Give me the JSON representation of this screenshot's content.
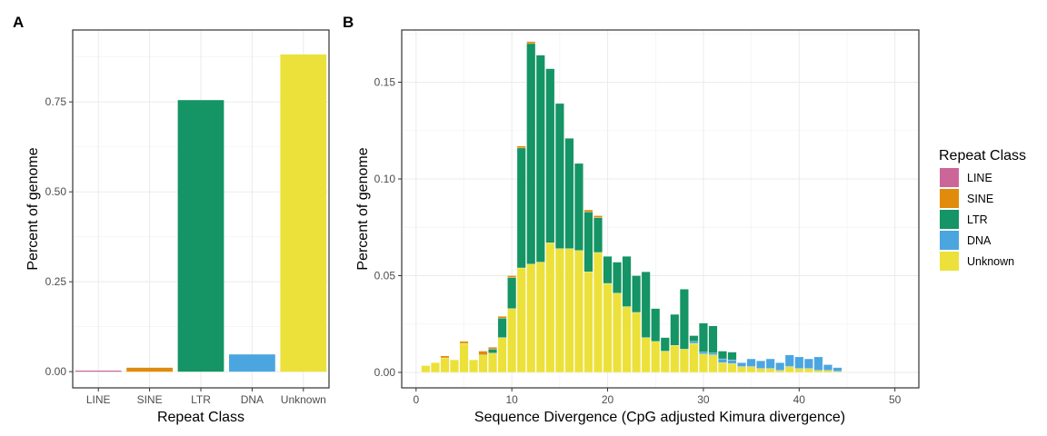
{
  "panels": {
    "a": "A",
    "b": "B"
  },
  "legend": {
    "title": "Repeat Class",
    "items": [
      {
        "label": "LINE",
        "color": "#cc6699"
      },
      {
        "label": "SINE",
        "color": "#e08b0b"
      },
      {
        "label": "LTR",
        "color": "#159465"
      },
      {
        "label": "DNA",
        "color": "#4ba6e0"
      },
      {
        "label": "Unknown",
        "color": "#ece13a"
      }
    ]
  },
  "chart_data": [
    {
      "type": "bar",
      "xlabel": "Repeat Class",
      "ylabel": "Percent of genome",
      "categories": [
        "LINE",
        "SINE",
        "LTR",
        "DNA",
        "Unknown"
      ],
      "values": [
        0.003,
        0.011,
        0.755,
        0.048,
        0.882
      ],
      "colors": [
        "#cc6699",
        "#e08b0b",
        "#159465",
        "#4ba6e0",
        "#ece13a"
      ],
      "ylim": [
        0,
        0.95
      ],
      "yticks": [
        0.0,
        0.25,
        0.5,
        0.75
      ],
      "ytick_labels": [
        "0.00",
        "0.25",
        "0.50",
        "0.75"
      ],
      "grid": true
    },
    {
      "type": "bar",
      "stacked": true,
      "xlabel": "Sequence Divergence (CpG adjusted Kimura divergence)",
      "ylabel": "Percent of genome",
      "x": [
        1,
        2,
        3,
        4,
        5,
        6,
        7,
        8,
        9,
        10,
        11,
        12,
        13,
        14,
        15,
        16,
        17,
        18,
        19,
        20,
        21,
        22,
        23,
        24,
        25,
        26,
        27,
        28,
        29,
        30,
        31,
        32,
        33,
        34,
        35,
        36,
        37,
        38,
        39,
        40,
        41,
        42,
        43,
        44
      ],
      "series": [
        {
          "name": "LINE",
          "color": "#cc6699",
          "values": [
            0,
            0,
            0,
            0,
            0,
            0,
            0,
            0,
            0,
            0,
            0,
            0,
            0,
            0,
            0,
            0,
            0,
            0,
            0,
            0,
            0,
            0,
            0,
            0,
            0,
            0,
            0,
            0,
            0,
            0,
            0,
            0,
            0,
            0,
            0,
            0,
            0,
            0,
            0,
            0,
            0,
            0,
            0,
            0
          ]
        },
        {
          "name": "SINE",
          "color": "#e08b0b",
          "values": [
            0,
            0,
            0.001,
            0,
            0.001,
            0,
            0.002,
            0.001,
            0.001,
            0.001,
            0.001,
            0.001,
            0,
            0,
            0,
            0,
            0,
            0.001,
            0.001,
            0,
            0,
            0,
            0,
            0,
            0,
            0,
            0,
            0,
            0,
            0,
            0,
            0,
            0,
            0,
            0,
            0,
            0,
            0,
            0,
            0,
            0,
            0,
            0,
            0
          ]
        },
        {
          "name": "LTR",
          "color": "#159465",
          "values": [
            0,
            0,
            0,
            0,
            0,
            0,
            0,
            0.002,
            0.01,
            0.016,
            0.062,
            0.114,
            0.107,
            0.09,
            0.075,
            0.057,
            0.045,
            0.031,
            0.018,
            0.014,
            0.016,
            0.026,
            0.019,
            0.034,
            0.017,
            0.007,
            0.016,
            0.031,
            0.003,
            0.015,
            0.014,
            0.004,
            0.004,
            0,
            0,
            0,
            0,
            0,
            0,
            0,
            0,
            0,
            0,
            0
          ]
        },
        {
          "name": "DNA",
          "color": "#4ba6e0",
          "values": [
            0,
            0,
            0,
            0,
            0,
            0,
            0,
            0,
            0,
            0,
            0,
            0,
            0,
            0,
            0,
            0,
            0,
            0,
            0,
            0,
            0,
            0,
            0,
            0,
            0,
            0,
            0,
            0,
            0.001,
            0.001,
            0.001,
            0.002,
            0.002,
            0.002,
            0.004,
            0.004,
            0.005,
            0.004,
            0.006,
            0.006,
            0.005,
            0.007,
            0.003,
            0.002
          ]
        },
        {
          "name": "Unknown",
          "color": "#ece13a",
          "values": [
            0.0035,
            0.005,
            0.0075,
            0.0065,
            0.015,
            0.0065,
            0.009,
            0.01,
            0.018,
            0.033,
            0.054,
            0.056,
            0.057,
            0.067,
            0.064,
            0.064,
            0.063,
            0.052,
            0.062,
            0.046,
            0.041,
            0.034,
            0.031,
            0.018,
            0.016,
            0.011,
            0.014,
            0.012,
            0.015,
            0.0095,
            0.009,
            0.005,
            0.0045,
            0.003,
            0.003,
            0.002,
            0.002,
            0.001,
            0.003,
            0.002,
            0.002,
            0.001,
            0.001,
            0.0005
          ]
        }
      ],
      "xlim": [
        -1.5,
        52.5
      ],
      "ylim": [
        -0.008,
        0.177
      ],
      "xticks": [
        0,
        10,
        20,
        30,
        40,
        50
      ],
      "yticks": [
        0.0,
        0.05,
        0.1,
        0.15
      ],
      "ytick_labels": [
        "0.00",
        "0.05",
        "0.10",
        "0.15"
      ],
      "grid": true
    }
  ]
}
